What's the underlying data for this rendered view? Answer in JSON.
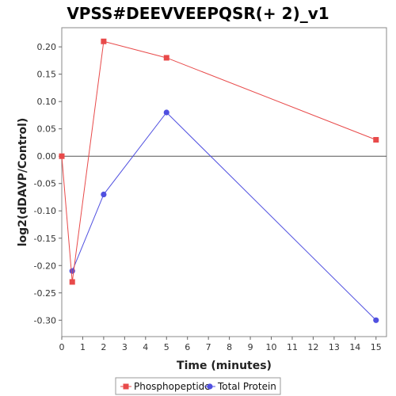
{
  "chart_data": {
    "type": "line",
    "title": "VPSS#DEEVVEEPQSR(+ 2)_v1",
    "xlabel": "Time (minutes)",
    "ylabel": "log2(dDAVP/Control)",
    "xlim": [
      0,
      15.5
    ],
    "ylim": [
      -0.33,
      0.235
    ],
    "x_ticks": [
      "0",
      "1",
      "2",
      "3",
      "4",
      "5",
      "6",
      "7",
      "8",
      "9",
      "10",
      "11",
      "12",
      "13",
      "14",
      "15"
    ],
    "y_ticks": [
      "0.20",
      "0.15",
      "0.10",
      "0.05",
      "0.00",
      "-0.05",
      "-0.10",
      "-0.15",
      "-0.20",
      "-0.25",
      "-0.30"
    ],
    "zero_line": true,
    "grid": false,
    "legend_position": "bottom",
    "series": [
      {
        "name": "Phosphopeptide",
        "color": "#e84a4a",
        "marker": "square",
        "points": [
          {
            "x": 0,
            "y": 0.0
          },
          {
            "x": 0.5,
            "y": -0.23
          },
          {
            "x": 2,
            "y": 0.21
          },
          {
            "x": 5,
            "y": 0.18
          },
          {
            "x": 15,
            "y": 0.03
          }
        ]
      },
      {
        "name": "Total Protein",
        "color": "#5050e0",
        "marker": "circle",
        "points": [
          {
            "x": 0.5,
            "y": -0.21
          },
          {
            "x": 2,
            "y": -0.07
          },
          {
            "x": 5,
            "y": 0.08
          },
          {
            "x": 15,
            "y": -0.3
          }
        ]
      }
    ]
  }
}
